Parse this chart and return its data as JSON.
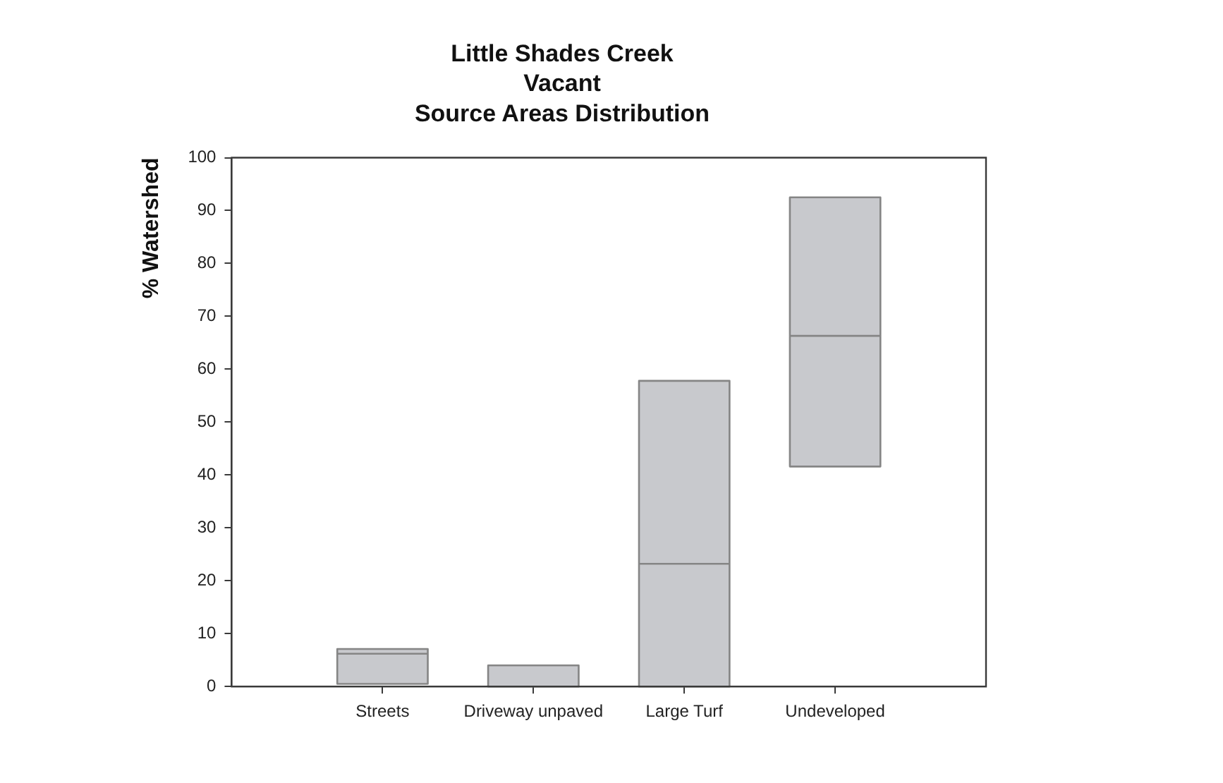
{
  "chart_data": {
    "type": "box",
    "title": "Little Shades Creek\nVacant\nSource Areas Distribution",
    "ylabel": "% Watershed",
    "categories": [
      "Streets",
      "Driveway unpaved",
      "Large Turf",
      "Undeveloped"
    ],
    "boxes": [
      {
        "low": 0.5,
        "q1": 0.5,
        "median": 6.2,
        "q3": 7.1,
        "high": 7.1
      },
      {
        "low": 0,
        "q1": 0,
        "median": 0,
        "q3": 4,
        "high": 4
      },
      {
        "low": 0,
        "q1": 0,
        "median": 23.2,
        "q3": 57.8,
        "high": 57.8
      },
      {
        "low": 41.6,
        "q1": 41.6,
        "median": 66.3,
        "q3": 92.5,
        "high": 92.5
      }
    ],
    "color": "#c8c9cd",
    "ylim": [
      0,
      100
    ],
    "yticks": [
      0,
      10,
      20,
      30,
      40,
      50,
      60,
      70,
      80,
      90,
      100
    ],
    "grid": false,
    "legend": false
  }
}
